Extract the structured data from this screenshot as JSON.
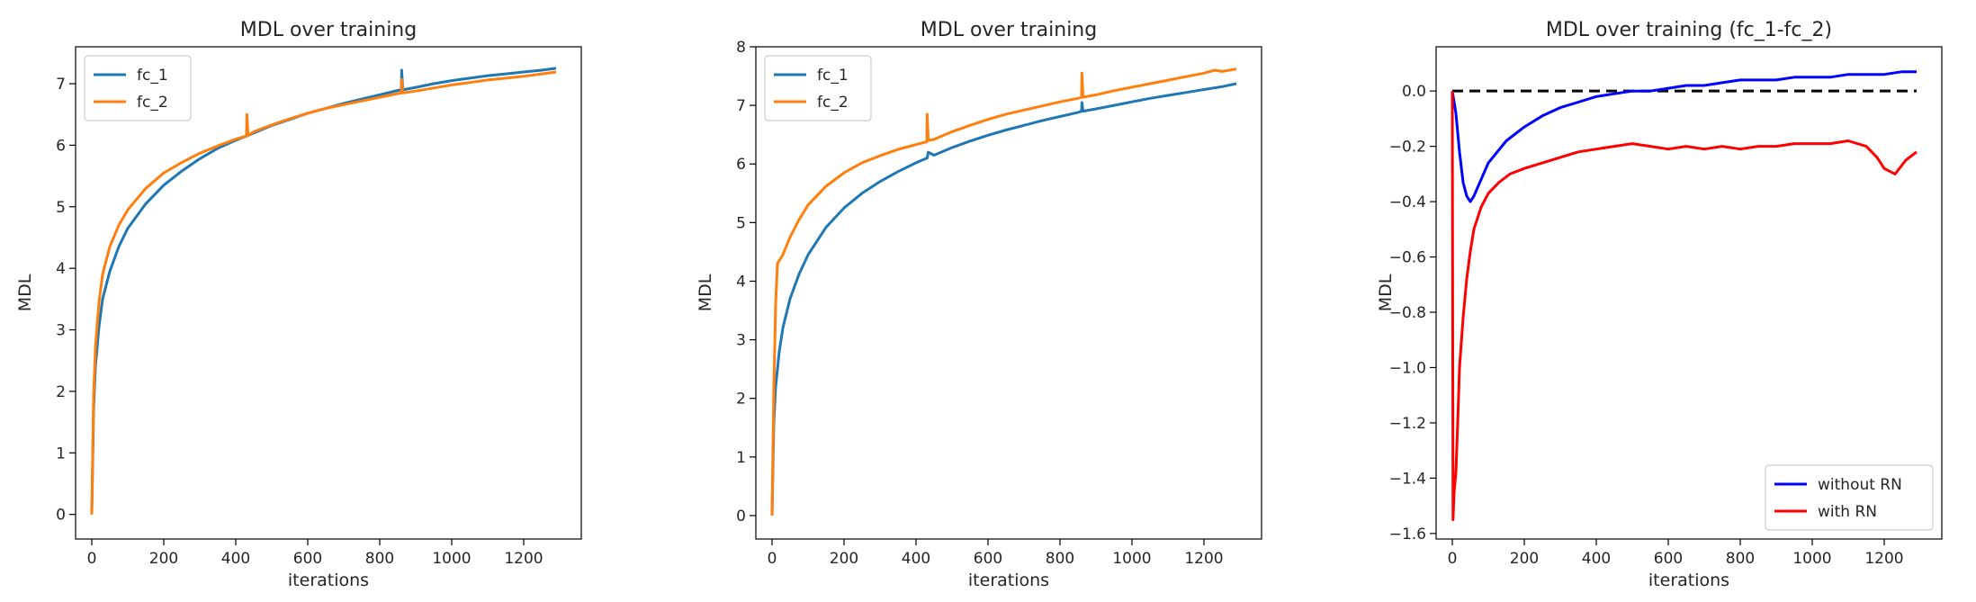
{
  "chart_data": [
    {
      "type": "line",
      "title": "MDL over training",
      "xlabel": "iterations",
      "ylabel": "MDL",
      "xlim": [
        -45,
        1360
      ],
      "ylim": [
        -0.4,
        7.6
      ],
      "xticks": [
        0,
        200,
        400,
        600,
        800,
        1000,
        1200
      ],
      "yticks": [
        0,
        1,
        2,
        3,
        4,
        5,
        6,
        7
      ],
      "grid": false,
      "legend": "top-left",
      "series": [
        {
          "name": "fc_1",
          "color": "#1f77b4",
          "x": [
            0,
            5,
            10,
            20,
            30,
            50,
            75,
            100,
            150,
            200,
            250,
            300,
            350,
            400,
            430,
            431,
            434,
            450,
            500,
            550,
            600,
            650,
            700,
            750,
            800,
            850,
            860,
            861,
            864,
            900,
            950,
            1000,
            1050,
            1100,
            1150,
            1200,
            1250,
            1290
          ],
          "y": [
            0,
            1.7,
            2.4,
            3.05,
            3.5,
            3.95,
            4.35,
            4.65,
            5.05,
            5.35,
            5.58,
            5.78,
            5.95,
            6.08,
            6.15,
            6.15,
            6.16,
            6.2,
            6.32,
            6.42,
            6.52,
            6.6,
            6.68,
            6.75,
            6.82,
            6.89,
            6.9,
            7.22,
            6.9,
            6.94,
            7.0,
            7.05,
            7.09,
            7.13,
            7.16,
            7.19,
            7.22,
            7.25
          ]
        },
        {
          "name": "fc_2",
          "color": "#ff7f0e",
          "x": [
            0,
            5,
            10,
            20,
            30,
            50,
            75,
            100,
            150,
            200,
            250,
            300,
            350,
            400,
            430,
            431,
            434,
            450,
            500,
            550,
            600,
            650,
            700,
            750,
            800,
            850,
            860,
            861,
            864,
            900,
            950,
            1000,
            1050,
            1100,
            1150,
            1200,
            1250,
            1290
          ],
          "y": [
            0,
            1.9,
            2.7,
            3.45,
            3.9,
            4.35,
            4.7,
            4.95,
            5.3,
            5.55,
            5.72,
            5.87,
            5.99,
            6.1,
            6.15,
            6.5,
            6.16,
            6.22,
            6.33,
            6.43,
            6.52,
            6.6,
            6.66,
            6.72,
            6.78,
            6.84,
            6.85,
            7.07,
            6.85,
            6.88,
            6.93,
            6.98,
            7.02,
            7.06,
            7.09,
            7.12,
            7.16,
            7.19
          ]
        }
      ]
    },
    {
      "type": "line",
      "title": "MDL over training",
      "xlabel": "iterations",
      "ylabel": "MDL",
      "xlim": [
        -45,
        1360
      ],
      "ylim": [
        -0.4,
        8.0
      ],
      "xticks": [
        0,
        200,
        400,
        600,
        800,
        1000,
        1200
      ],
      "yticks": [
        0,
        1,
        2,
        3,
        4,
        5,
        6,
        7,
        8
      ],
      "grid": false,
      "legend": "top-left",
      "series": [
        {
          "name": "fc_1",
          "color": "#1f77b4",
          "x": [
            0,
            5,
            10,
            20,
            30,
            50,
            75,
            100,
            150,
            200,
            250,
            300,
            350,
            400,
            430,
            431,
            434,
            450,
            500,
            550,
            600,
            650,
            700,
            750,
            800,
            850,
            860,
            861,
            864,
            900,
            950,
            1000,
            1050,
            1100,
            1150,
            1200,
            1250,
            1290
          ],
          "y": [
            0,
            1.6,
            2.2,
            2.8,
            3.2,
            3.7,
            4.12,
            4.45,
            4.92,
            5.25,
            5.5,
            5.7,
            5.87,
            6.02,
            6.1,
            6.1,
            6.2,
            6.15,
            6.28,
            6.39,
            6.49,
            6.58,
            6.66,
            6.74,
            6.81,
            6.88,
            6.9,
            7.05,
            6.9,
            6.94,
            7.0,
            7.06,
            7.12,
            7.17,
            7.22,
            7.27,
            7.32,
            7.37
          ]
        },
        {
          "name": "fc_2",
          "color": "#ff7f0e",
          "x": [
            0,
            5,
            10,
            15,
            20,
            30,
            50,
            75,
            100,
            150,
            200,
            250,
            300,
            350,
            400,
            430,
            431,
            434,
            450,
            500,
            550,
            600,
            650,
            700,
            750,
            800,
            850,
            860,
            861,
            864,
            900,
            950,
            1000,
            1050,
            1100,
            1150,
            1200,
            1230,
            1250,
            1290
          ],
          "y": [
            0,
            2.2,
            3.6,
            4.3,
            4.35,
            4.45,
            4.75,
            5.05,
            5.3,
            5.62,
            5.85,
            6.02,
            6.14,
            6.25,
            6.33,
            6.38,
            6.85,
            6.4,
            6.42,
            6.55,
            6.66,
            6.76,
            6.85,
            6.92,
            6.99,
            7.06,
            7.12,
            7.14,
            7.55,
            7.14,
            7.18,
            7.25,
            7.31,
            7.37,
            7.43,
            7.49,
            7.55,
            7.6,
            7.58,
            7.62
          ]
        }
      ]
    },
    {
      "type": "line",
      "title": "MDL over training (fc_1-fc_2)",
      "xlabel": "iterations",
      "ylabel": "MDL",
      "xlim": [
        -45,
        1360
      ],
      "ylim": [
        -1.62,
        0.16
      ],
      "xticks": [
        0,
        200,
        400,
        600,
        800,
        1000,
        1200
      ],
      "yticks": [
        0.0,
        -0.2,
        -0.4,
        -0.6,
        -0.8,
        -1.0,
        -1.2,
        -1.4,
        -1.6
      ],
      "ytick_labels": [
        "0.0",
        "−0.2",
        "−0.4",
        "−0.6",
        "−0.8",
        "−1.0",
        "−1.2",
        "−1.4",
        "−1.6"
      ],
      "grid": false,
      "legend": "bottom-right",
      "reference_line": {
        "y": 0,
        "x": [
          0,
          1290
        ],
        "color": "#000000",
        "style": "dashed"
      },
      "series": [
        {
          "name": "without RN",
          "color": "#0000ff",
          "x": [
            0,
            10,
            20,
            30,
            40,
            50,
            60,
            80,
            100,
            150,
            200,
            250,
            300,
            350,
            400,
            450,
            500,
            550,
            600,
            650,
            700,
            750,
            800,
            850,
            900,
            950,
            1000,
            1050,
            1100,
            1150,
            1200,
            1250,
            1290
          ],
          "y": [
            0.0,
            -0.08,
            -0.22,
            -0.33,
            -0.38,
            -0.4,
            -0.38,
            -0.32,
            -0.26,
            -0.18,
            -0.13,
            -0.09,
            -0.06,
            -0.04,
            -0.02,
            -0.01,
            0.0,
            0.0,
            0.01,
            0.02,
            0.02,
            0.03,
            0.04,
            0.04,
            0.04,
            0.05,
            0.05,
            0.05,
            0.06,
            0.06,
            0.06,
            0.07,
            0.07
          ]
        },
        {
          "name": "with RN",
          "color": "#ff0000",
          "x": [
            0,
            2,
            5,
            10,
            15,
            20,
            30,
            40,
            50,
            60,
            80,
            100,
            130,
            160,
            200,
            250,
            300,
            350,
            400,
            450,
            500,
            550,
            600,
            650,
            700,
            750,
            800,
            850,
            900,
            950,
            1000,
            1050,
            1100,
            1150,
            1180,
            1200,
            1230,
            1260,
            1290
          ],
          "y": [
            0.0,
            -1.55,
            -1.45,
            -1.38,
            -1.2,
            -1.0,
            -0.82,
            -0.68,
            -0.58,
            -0.5,
            -0.42,
            -0.37,
            -0.33,
            -0.3,
            -0.28,
            -0.26,
            -0.24,
            -0.22,
            -0.21,
            -0.2,
            -0.19,
            -0.2,
            -0.21,
            -0.2,
            -0.21,
            -0.2,
            -0.21,
            -0.2,
            -0.2,
            -0.19,
            -0.19,
            -0.19,
            -0.18,
            -0.2,
            -0.24,
            -0.28,
            -0.3,
            -0.25,
            -0.22
          ]
        }
      ]
    }
  ]
}
